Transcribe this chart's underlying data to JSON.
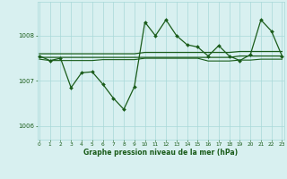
{
  "x": [
    0,
    1,
    2,
    3,
    4,
    5,
    6,
    7,
    8,
    9,
    10,
    11,
    12,
    13,
    14,
    15,
    16,
    17,
    18,
    19,
    20,
    21,
    22,
    23
  ],
  "y_main": [
    1007.55,
    1007.45,
    1007.5,
    1006.85,
    1007.18,
    1007.2,
    1006.93,
    1006.62,
    1006.37,
    1006.87,
    1008.3,
    1008.0,
    1008.35,
    1008.0,
    1007.8,
    1007.75,
    1007.55,
    1007.78,
    1007.55,
    1007.45,
    1007.58,
    1008.35,
    1008.1,
    1007.55
  ],
  "y_smooth1": [
    1007.6,
    1007.6,
    1007.6,
    1007.6,
    1007.6,
    1007.6,
    1007.6,
    1007.6,
    1007.6,
    1007.6,
    1007.63,
    1007.63,
    1007.63,
    1007.63,
    1007.63,
    1007.63,
    1007.63,
    1007.63,
    1007.63,
    1007.65,
    1007.65,
    1007.65,
    1007.65,
    1007.65
  ],
  "y_smooth2": [
    1007.52,
    1007.52,
    1007.52,
    1007.52,
    1007.52,
    1007.52,
    1007.52,
    1007.52,
    1007.52,
    1007.52,
    1007.52,
    1007.52,
    1007.52,
    1007.52,
    1007.52,
    1007.52,
    1007.52,
    1007.52,
    1007.52,
    1007.55,
    1007.55,
    1007.55,
    1007.55,
    1007.55
  ],
  "y_smooth3": [
    1007.48,
    1007.45,
    1007.45,
    1007.45,
    1007.45,
    1007.45,
    1007.47,
    1007.47,
    1007.47,
    1007.47,
    1007.5,
    1007.5,
    1007.5,
    1007.5,
    1007.5,
    1007.5,
    1007.44,
    1007.44,
    1007.44,
    1007.46,
    1007.46,
    1007.48,
    1007.48,
    1007.48
  ],
  "line_color": "#1a5c1a",
  "bg_color": "#d8f0f0",
  "grid_color": "#a8d8d8",
  "xlabel": "Graphe pression niveau de la mer (hPa)",
  "xticks": [
    0,
    1,
    2,
    3,
    4,
    5,
    6,
    7,
    8,
    9,
    10,
    11,
    12,
    13,
    14,
    15,
    16,
    17,
    18,
    19,
    20,
    21,
    22,
    23
  ],
  "yticks": [
    1006,
    1007,
    1008
  ],
  "ylim": [
    1005.7,
    1008.75
  ],
  "xlim": [
    -0.2,
    23.2
  ]
}
